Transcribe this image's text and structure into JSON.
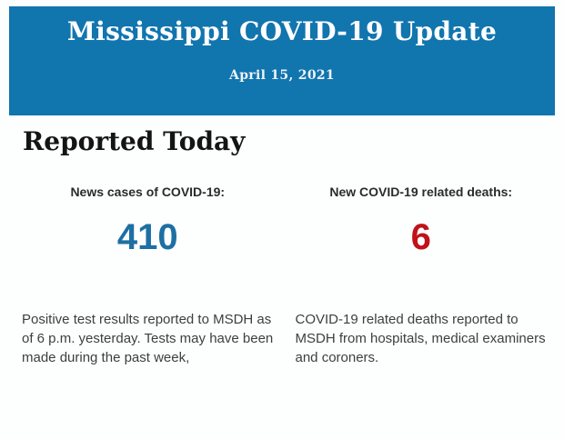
{
  "header": {
    "title": "Mississippi COVID-19 Update",
    "date": "April 15, 2021",
    "background_color": "#1175ae",
    "title_color": "#fefefe"
  },
  "main": {
    "section_title": "Reported Today"
  },
  "stats": [
    {
      "label": "News cases of COVID-19:",
      "value": "410",
      "value_color": "#1d6fa4",
      "description": "Positive test results reported to MSDH as of 6 p.m. yesterday. Tests may have been made during the past week,"
    },
    {
      "label": "New COVID-19 related deaths:",
      "value": "6",
      "value_color": "#c1121a",
      "description": "COVID-19 related deaths reported to MSDH from hospitals, medical examiners and coroners."
    }
  ]
}
